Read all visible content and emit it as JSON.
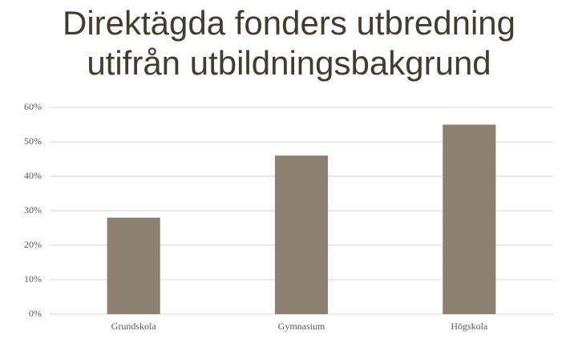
{
  "chart_data": {
    "type": "bar",
    "title": "Direktägda fonders utbredning utifrån utbildningsbakgrund",
    "categories": [
      "Grundskola",
      "Gymnasium",
      "Högskola"
    ],
    "values": [
      28,
      46,
      55
    ],
    "color": "#8c8070",
    "ylim": [
      0,
      60
    ],
    "yticks": [
      {
        "value": 0,
        "label": "0%"
      },
      {
        "value": 10,
        "label": "10%"
      },
      {
        "value": 20,
        "label": "20%"
      },
      {
        "value": 30,
        "label": "30%"
      },
      {
        "value": 40,
        "label": "40%"
      },
      {
        "value": 50,
        "label": "50%"
      },
      {
        "value": 60,
        "label": "60%"
      }
    ],
    "grid": true
  }
}
